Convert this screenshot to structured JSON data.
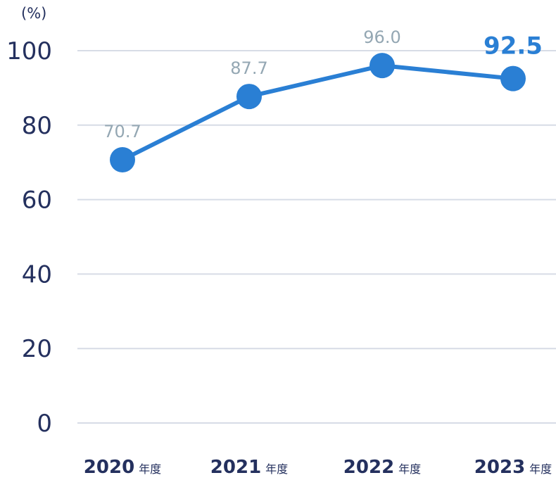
{
  "chart_data": {
    "type": "line",
    "unit_label": "(%)",
    "categories": [
      {
        "year": "2020",
        "suffix": "年度"
      },
      {
        "year": "2021",
        "suffix": "年度"
      },
      {
        "year": "2022",
        "suffix": "年度"
      },
      {
        "year": "2023",
        "suffix": "年度"
      }
    ],
    "series": [
      {
        "values": [
          70.7,
          87.7,
          96.0,
          92.5
        ],
        "labels": [
          "70.7",
          "87.7",
          "96.0",
          "92.5"
        ],
        "highlight_index": 3
      }
    ],
    "y_ticks": [
      "0",
      "20",
      "40",
      "60",
      "80",
      "100"
    ],
    "ylim": [
      0,
      100
    ],
    "grid": true,
    "colors": {
      "line": "#2a7fd4",
      "grid": "#d7dce6",
      "axis_text": "#24305e",
      "label": "#94a7b3",
      "highlight": "#2a7fd4"
    }
  }
}
